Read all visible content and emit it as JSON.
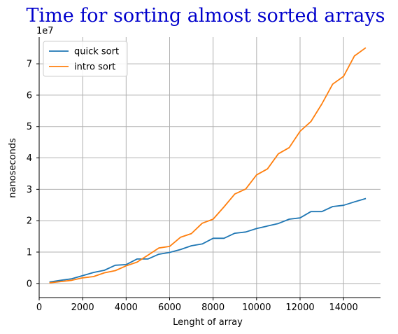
{
  "chart_data": {
    "type": "line",
    "title": "Time for sorting almost sorted arrays",
    "xlabel": "Lenght of array",
    "ylabel": "nanoseconds",
    "y_offset_label": "1e7",
    "xlim": [
      0,
      15700
    ],
    "ylim": [
      -0.45,
      7.85
    ],
    "y_scale": 10000000,
    "x_ticks": [
      0,
      2000,
      4000,
      6000,
      8000,
      10000,
      12000,
      14000
    ],
    "y_ticks": [
      0,
      1,
      2,
      3,
      4,
      5,
      6,
      7
    ],
    "grid": true,
    "legend_position": "upper-left",
    "x": [
      500,
      1000,
      1500,
      2000,
      2500,
      3000,
      3500,
      4000,
      4500,
      5000,
      5500,
      6000,
      6500,
      7000,
      7500,
      8000,
      8500,
      9000,
      9500,
      10000,
      10500,
      11000,
      11500,
      12000,
      12500,
      13000,
      13500,
      14000,
      14500,
      15000
    ],
    "series": [
      {
        "name": "quick sort",
        "color": "#1f77b4",
        "values": [
          0.05,
          0.1,
          0.15,
          0.25,
          0.35,
          0.42,
          0.58,
          0.6,
          0.78,
          0.78,
          0.93,
          0.99,
          1.08,
          1.2,
          1.26,
          1.44,
          1.44,
          1.6,
          1.64,
          1.75,
          1.83,
          1.91,
          2.05,
          2.09,
          2.29,
          2.29,
          2.45,
          2.49,
          2.6,
          2.7
        ]
      },
      {
        "name": "intro sort",
        "color": "#ff7f0e",
        "values": [
          0.02,
          0.06,
          0.1,
          0.18,
          0.22,
          0.34,
          0.41,
          0.56,
          0.68,
          0.9,
          1.13,
          1.18,
          1.47,
          1.59,
          1.92,
          2.05,
          2.44,
          2.85,
          3.01,
          3.46,
          3.65,
          4.13,
          4.33,
          4.85,
          5.16,
          5.72,
          6.35,
          6.6,
          7.25,
          7.5
        ]
      }
    ]
  }
}
